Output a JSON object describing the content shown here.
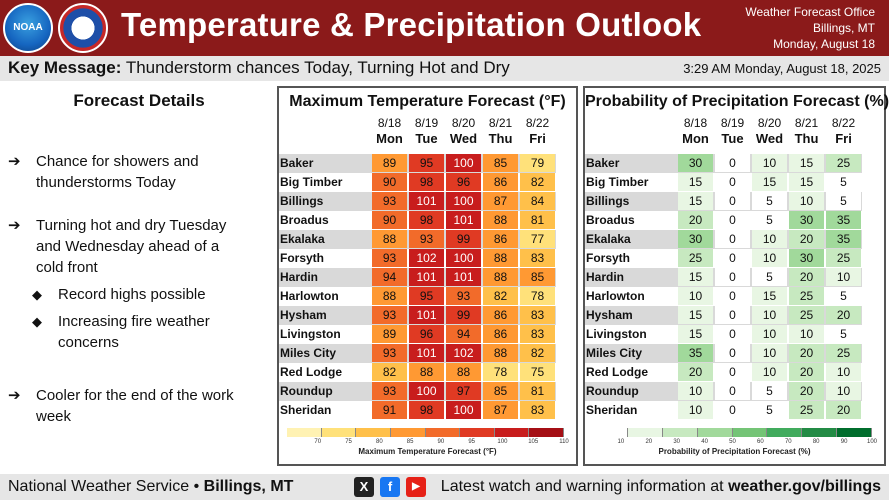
{
  "header": {
    "title": "Temperature & Precipitation Outlook",
    "office_line1": "Weather Forecast Office",
    "office_line2": "Billings, MT",
    "office_line3": "Monday, August 18",
    "logo_left": "NOAA",
    "logo_right_icon": "nws-logo-icon"
  },
  "key_message": {
    "label": "Key Message:",
    "text": "Thunderstorm chances Today, Turning Hot and Dry",
    "timestamp": "3:29 AM Monday, August 18, 2025"
  },
  "details": {
    "title": "Forecast Details",
    "items": [
      {
        "text_1": "Chance for showers and",
        "text_2": "thunderstorms Today"
      },
      {
        "text_1": "Turning hot and dry Tuesday",
        "text_2": "and Wednesday ahead of a",
        "text_3": "cold front"
      },
      {
        "text_1": "Record highs possible"
      },
      {
        "text_1": "Increasing fire weather",
        "text_2": "concerns"
      },
      {
        "text_1": "Cooler for the end of the work",
        "text_2": "week"
      }
    ],
    "arrow": "➔",
    "diamond": "◆"
  },
  "days": [
    {
      "date": "8/18",
      "dow": "Mon"
    },
    {
      "date": "8/19",
      "dow": "Tue"
    },
    {
      "date": "8/20",
      "dow": "Wed"
    },
    {
      "date": "8/21",
      "dow": "Thu"
    },
    {
      "date": "8/22",
      "dow": "Fri"
    }
  ],
  "locations": [
    "Baker",
    "Big Timber",
    "Billings",
    "Broadus",
    "Ekalaka",
    "Forsyth",
    "Hardin",
    "Harlowton",
    "Hysham",
    "Livingston",
    "Miles City",
    "Red Lodge",
    "Roundup",
    "Sheridan"
  ],
  "temp_table": {
    "title": "Maximum Temperature Forecast (°F)",
    "values": [
      [
        89,
        95,
        100,
        85,
        79
      ],
      [
        90,
        98,
        96,
        86,
        82
      ],
      [
        93,
        101,
        100,
        87,
        84
      ],
      [
        90,
        98,
        101,
        88,
        81
      ],
      [
        88,
        93,
        99,
        86,
        77
      ],
      [
        93,
        102,
        100,
        88,
        83
      ],
      [
        94,
        101,
        101,
        88,
        85
      ],
      [
        88,
        95,
        93,
        82,
        78
      ],
      [
        93,
        101,
        99,
        86,
        83
      ],
      [
        89,
        96,
        94,
        86,
        83
      ],
      [
        93,
        101,
        102,
        88,
        82
      ],
      [
        82,
        88,
        88,
        78,
        75
      ],
      [
        93,
        100,
        97,
        85,
        81
      ],
      [
        91,
        98,
        100,
        87,
        83
      ]
    ],
    "legend_title": "Maximum Temperature Forecast (°F)",
    "legend_ticks": [
      "70",
      "75",
      "80",
      "85",
      "90",
      "95",
      "100",
      "105",
      "110"
    ]
  },
  "pop_table": {
    "title": "Probability of Precipitation Forecast (%)",
    "values": [
      [
        30,
        0,
        10,
        15,
        25
      ],
      [
        15,
        0,
        15,
        15,
        5
      ],
      [
        15,
        0,
        5,
        10,
        5
      ],
      [
        20,
        0,
        5,
        30,
        35
      ],
      [
        30,
        0,
        10,
        20,
        35
      ],
      [
        25,
        0,
        10,
        30,
        25
      ],
      [
        15,
        0,
        5,
        20,
        10
      ],
      [
        10,
        0,
        15,
        25,
        5
      ],
      [
        15,
        0,
        10,
        25,
        20
      ],
      [
        15,
        0,
        10,
        10,
        5
      ],
      [
        35,
        0,
        10,
        20,
        25
      ],
      [
        20,
        0,
        10,
        20,
        10
      ],
      [
        10,
        0,
        5,
        20,
        10
      ],
      [
        10,
        0,
        5,
        25,
        20
      ]
    ],
    "legend_title": "Probability of Precipitation Forecast (%)",
    "legend_ticks": [
      "10",
      "20",
      "30",
      "40",
      "50",
      "60",
      "70",
      "80",
      "90",
      "100"
    ]
  },
  "footer": {
    "org": "National Weather Service",
    "sep": "•",
    "office": "Billings, MT",
    "latest_text": "Latest watch and warning information at",
    "url": "weather.gov/billings",
    "social_x": "X",
    "social_fb": "f",
    "social_yt": "▶"
  },
  "colors": {
    "header_bg": "#8b1a1a",
    "temp_scale": [
      "#fff2b3",
      "#ffe17a",
      "#ffc04a",
      "#ff9933",
      "#f26b2a",
      "#e03a23",
      "#c81d1d",
      "#a50f15"
    ],
    "pop_scale": [
      "#ffffff",
      "#e8f6e3",
      "#c7e9c0",
      "#a1d99b",
      "#74c476",
      "#41ab5d",
      "#238b45",
      "#006d2c"
    ]
  }
}
